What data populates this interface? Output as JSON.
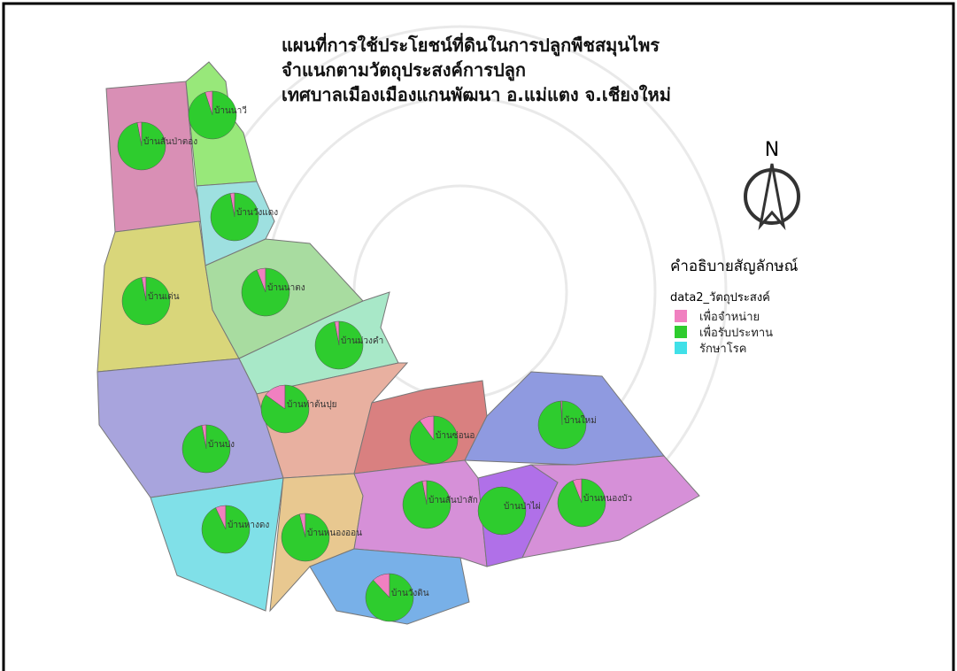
{
  "title": [
    "แผนที่การใช้ประโยชน์ที่ดินในการปลูกพืชสมุนไพร",
    "จำแนกตามวัตถุประสงค์การปลูก",
    "เทศบาลเมืองเมืองแกนพัฒนา อ.แม่แตง  จ.เชียงใหม่"
  ],
  "north": "N",
  "legend": {
    "title": "คำอธิบายสัญลักษณ์",
    "subtitle": "data2_วัตถุประสงค์",
    "items": [
      {
        "name": "เพื่อจำหน่าย",
        "color": "#f080c0"
      },
      {
        "name": "เพื่อรับประทาน",
        "color": "#2ecc2e"
      },
      {
        "name": "รักษาโรค",
        "color": "#40e0e8"
      }
    ]
  },
  "villages": [
    {
      "name": "บ้านสันป่าตอง",
      "values": [
        3,
        97,
        0
      ]
    },
    {
      "name": "บ้านนาวี",
      "values": [
        5,
        95,
        0
      ]
    },
    {
      "name": "บ้านวังแดง",
      "values": [
        3,
        97,
        0
      ]
    },
    {
      "name": "บ้านเด่น",
      "values": [
        3,
        97,
        0
      ]
    },
    {
      "name": "บ้านนาตง",
      "values": [
        6,
        94,
        0
      ]
    },
    {
      "name": "บ้านม่วงคำ",
      "values": [
        3,
        97,
        0
      ]
    },
    {
      "name": "บ้านท่าต้นปุย",
      "values": [
        15,
        85,
        0
      ]
    },
    {
      "name": "บ้านปง",
      "values": [
        3,
        97,
        0
      ]
    },
    {
      "name": "บ้านหางดง",
      "values": [
        7,
        93,
        0
      ]
    },
    {
      "name": "บ้านหนองออน",
      "values": [
        4,
        96,
        0
      ]
    },
    {
      "name": "บ้านวังดิน",
      "values": [
        12,
        88,
        0
      ]
    },
    {
      "name": "บ้านซ่อนอ",
      "values": [
        10,
        90,
        0
      ]
    },
    {
      "name": "บ้านใหม่",
      "values": [
        1,
        99,
        0
      ]
    },
    {
      "name": "บ้านสันป่าสัก",
      "values": [
        3,
        97,
        0
      ]
    },
    {
      "name": "บ้านป่าไผ่",
      "values": [
        0,
        100,
        0
      ]
    },
    {
      "name": "บ้านหนองบัว",
      "values": [
        6,
        94,
        0
      ]
    }
  ]
}
